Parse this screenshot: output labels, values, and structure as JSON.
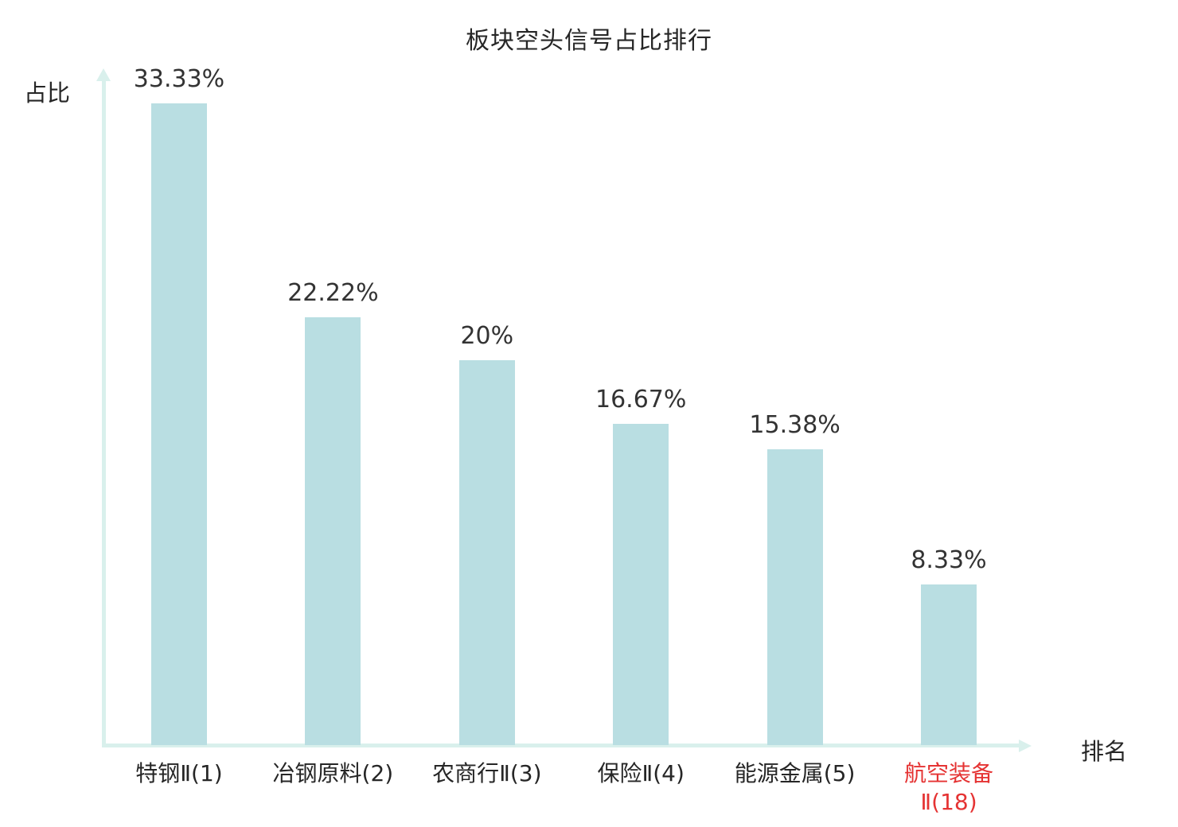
{
  "chart_data": {
    "type": "bar",
    "title": "板块空头信号占比排行",
    "xlabel": "排名",
    "ylabel": "占比",
    "categories": [
      "特钢Ⅱ(1)",
      "冶钢原料(2)",
      "农商行Ⅱ(3)",
      "保险Ⅱ(4)",
      "能源金属(5)",
      "航空装备Ⅱ(18)"
    ],
    "category_label_lines": [
      [
        "特钢Ⅱ(1)"
      ],
      [
        "冶钢原料(2)"
      ],
      [
        "农商行Ⅱ(3)"
      ],
      [
        "保险Ⅱ(4)"
      ],
      [
        "能源金属(5)"
      ],
      [
        "航空装备",
        "Ⅱ(18)"
      ]
    ],
    "values": [
      33.33,
      22.22,
      20,
      16.67,
      15.38,
      8.33
    ],
    "value_labels": [
      "33.33%",
      "22.22%",
      "20%",
      "16.67%",
      "15.38%",
      "8.33%"
    ],
    "highlight_index": 5,
    "ylim": [
      0,
      33.33
    ],
    "grid": false,
    "legend": "none",
    "colors": {
      "bar": "#b9dee2",
      "axis": "#d9f0ec",
      "text": "#333333",
      "highlight_text": "#e53333"
    }
  }
}
